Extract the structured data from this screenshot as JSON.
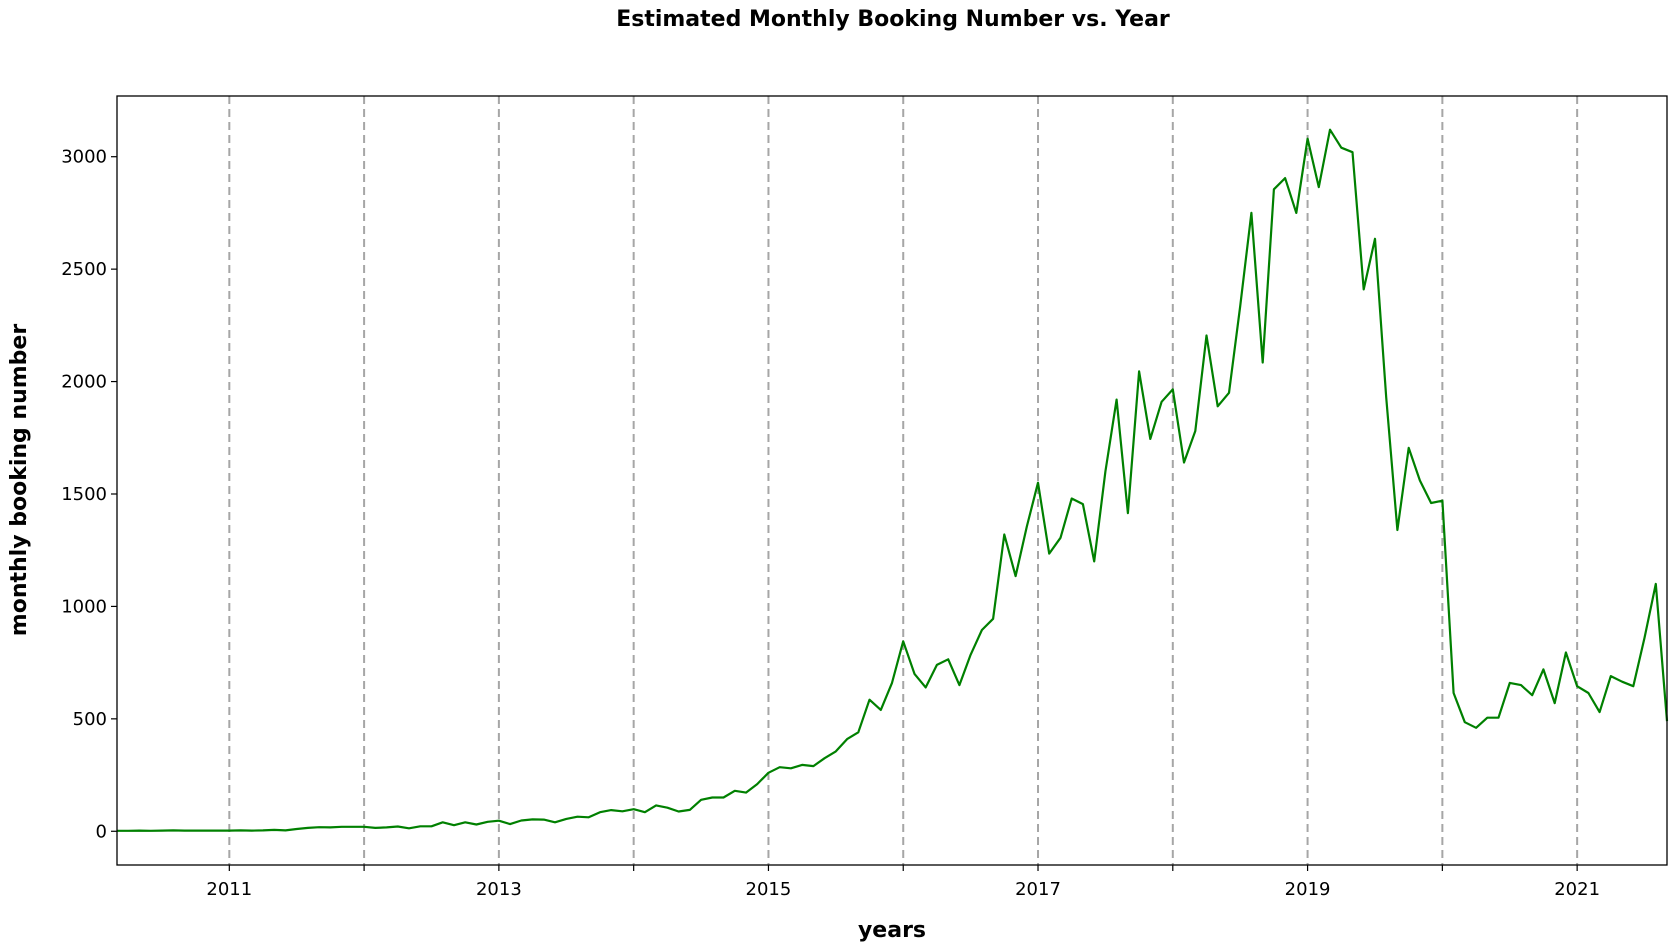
{
  "chart_data": {
    "type": "line",
    "title": "Estimated Monthly Booking Number vs. Year",
    "xlabel": "years",
    "ylabel": "monthly booking number",
    "x_tick_labels": [
      "2011",
      "2013",
      "2015",
      "2017",
      "2019",
      "2021"
    ],
    "y_tick_labels": [
      "0",
      "500",
      "1000",
      "1500",
      "2000",
      "2500",
      "3000"
    ],
    "x_ticks": [
      2011,
      2012,
      2013,
      2014,
      2015,
      2016,
      2017,
      2018,
      2019,
      2020,
      2021
    ],
    "y_ticks": [
      0,
      500,
      1000,
      1500,
      2000,
      2500,
      3000
    ],
    "xlim": [
      "2010-03",
      "2021-09"
    ],
    "ylim": [
      -150,
      3270
    ],
    "grid": "vertical dashed at yearly ticks",
    "line_color": "#008000",
    "grid_color": "#a6a6a6",
    "series": [
      {
        "x": [
          "2010-03",
          "2010-04",
          "2010-05",
          "2010-06",
          "2010-07",
          "2010-08",
          "2010-09",
          "2010-10",
          "2010-11",
          "2010-12",
          "2011-01",
          "2011-02",
          "2011-03",
          "2011-04",
          "2011-05",
          "2011-06",
          "2011-07",
          "2011-08",
          "2011-09",
          "2011-10",
          "2011-11",
          "2011-12",
          "2012-01",
          "2012-02",
          "2012-03",
          "2012-04",
          "2012-05",
          "2012-06",
          "2012-07",
          "2012-08",
          "2012-09",
          "2012-10",
          "2012-11",
          "2012-12",
          "2013-01",
          "2013-02",
          "2013-03",
          "2013-04",
          "2013-05",
          "2013-06",
          "2013-07",
          "2013-08",
          "2013-09",
          "2013-10",
          "2013-11",
          "2013-12",
          "2014-01",
          "2014-02",
          "2014-03",
          "2014-04",
          "2014-05",
          "2014-06",
          "2014-07",
          "2014-08",
          "2014-09",
          "2014-10",
          "2014-11",
          "2014-12",
          "2015-01",
          "2015-02",
          "2015-03",
          "2015-04",
          "2015-05",
          "2015-06",
          "2015-07",
          "2015-08",
          "2015-09",
          "2015-10",
          "2015-11",
          "2015-12",
          "2016-01",
          "2016-02",
          "2016-03",
          "2016-04",
          "2016-05",
          "2016-06",
          "2016-07",
          "2016-08",
          "2016-09",
          "2016-10",
          "2016-11",
          "2016-12",
          "2017-01",
          "2017-02",
          "2017-03",
          "2017-04",
          "2017-05",
          "2017-06",
          "2017-07",
          "2017-08",
          "2017-09",
          "2017-10",
          "2017-11",
          "2017-12",
          "2018-01",
          "2018-02",
          "2018-03",
          "2018-04",
          "2018-05",
          "2018-06",
          "2018-07",
          "2018-08",
          "2018-09",
          "2018-10",
          "2018-11",
          "2018-12",
          "2019-01",
          "2019-02",
          "2019-03",
          "2019-04",
          "2019-05",
          "2019-06",
          "2019-07",
          "2019-08",
          "2019-09",
          "2019-10",
          "2019-11",
          "2019-12",
          "2020-01",
          "2020-02",
          "2020-03",
          "2020-04",
          "2020-05",
          "2020-06",
          "2020-07",
          "2020-08",
          "2020-09",
          "2020-10",
          "2020-11",
          "2020-12",
          "2021-01",
          "2021-02",
          "2021-03",
          "2021-04",
          "2021-05",
          "2021-06",
          "2021-07",
          "2021-08",
          "2021-09"
        ],
        "values": [
          2,
          2,
          3,
          2,
          3,
          4,
          3,
          3,
          3,
          3,
          3,
          4,
          3,
          4,
          6,
          4,
          10,
          15,
          18,
          17,
          20,
          20,
          20,
          15,
          17,
          21,
          13,
          22,
          22,
          40,
          27,
          40,
          30,
          42,
          47,
          32,
          48,
          53,
          52,
          40,
          55,
          65,
          62,
          85,
          94,
          89,
          98,
          85,
          115,
          105,
          88,
          95,
          140,
          150,
          150,
          180,
          172,
          210,
          260,
          285,
          280,
          295,
          290,
          325,
          355,
          410,
          440,
          585,
          540,
          660,
          845,
          700,
          640,
          740,
          765,
          650,
          785,
          895,
          945,
          1320,
          1135,
          1355,
          1550,
          1235,
          1305,
          1480,
          1455,
          1200,
          1600,
          1920,
          1415,
          2045,
          1745,
          1910,
          1965,
          1640,
          1780,
          2205,
          1890,
          1950,
          2335,
          2750,
          2085,
          2855,
          2905,
          2750,
          3080,
          2865,
          3120,
          3040,
          3020,
          2410,
          2635,
          1930,
          1340,
          1705,
          1560,
          1460,
          1470,
          615,
          485,
          460,
          505,
          505,
          660,
          650,
          605,
          720,
          570,
          795,
          645,
          615,
          530,
          690,
          665,
          645,
          860,
          1100,
          490
        ]
      }
    ]
  }
}
